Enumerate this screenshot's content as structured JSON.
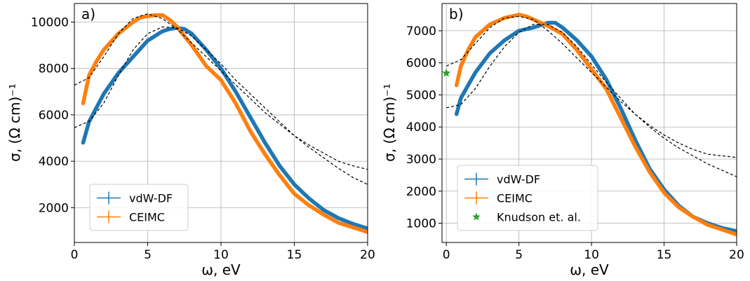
{
  "chart_data": [
    {
      "type": "line",
      "panel_label": "a)",
      "xlabel": "ω, eV",
      "ylabel": "σ, (Ω cm)⁻¹",
      "xlim": [
        0,
        20
      ],
      "ylim": [
        500,
        10800
      ],
      "xticks": [
        0,
        5,
        10,
        15,
        20
      ],
      "yticks": [
        2000,
        4000,
        6000,
        8000,
        10000
      ],
      "grid": true,
      "legend_position": "lower-left",
      "series": [
        {
          "name": "vdW-DF",
          "color": "#1f77b4",
          "x": [
            0.6,
            1,
            1.5,
            2,
            3,
            4,
            5,
            6,
            6.5,
            7,
            7.5,
            8,
            9,
            10,
            11,
            12,
            13,
            14,
            15,
            16,
            17,
            18,
            19,
            20
          ],
          "y": [
            4800,
            5700,
            6300,
            6900,
            7800,
            8500,
            9200,
            9600,
            9700,
            9750,
            9700,
            9500,
            8800,
            8000,
            7000,
            5900,
            4800,
            3800,
            3000,
            2400,
            1900,
            1550,
            1300,
            1100
          ]
        },
        {
          "name": "CEIMC",
          "color": "#ff7f0e",
          "x": [
            0.6,
            1,
            1.5,
            2,
            3,
            4,
            4.5,
            5,
            5.5,
            6,
            6.5,
            7,
            8,
            9,
            10,
            11,
            12,
            13,
            14,
            15,
            16,
            17,
            18,
            19,
            20
          ],
          "y": [
            6500,
            7700,
            8300,
            8800,
            9500,
            10000,
            10200,
            10250,
            10300,
            10300,
            10100,
            9800,
            9000,
            8100,
            7500,
            6500,
            5300,
            4300,
            3400,
            2600,
            2100,
            1700,
            1350,
            1150,
            950
          ]
        },
        {
          "name": "",
          "style": "dashed",
          "color": "#000000",
          "x": [
            0,
            1,
            2,
            3,
            4,
            5,
            6,
            7,
            8,
            9,
            10,
            11,
            12,
            13,
            14,
            15,
            16,
            17,
            18,
            19,
            20
          ],
          "y": [
            5450,
            5720,
            6500,
            7700,
            8800,
            9500,
            9790,
            9750,
            9400,
            8800,
            8200,
            7500,
            6900,
            6300,
            5700,
            5100,
            4600,
            4150,
            3700,
            3300,
            3000
          ]
        },
        {
          "name": "",
          "style": "dashed",
          "color": "#000000",
          "x": [
            0,
            1,
            2,
            3,
            4,
            5,
            6,
            7,
            8,
            9,
            10,
            11,
            12,
            13,
            14,
            15,
            16,
            17,
            18,
            19,
            20
          ],
          "y": [
            7280,
            7600,
            8500,
            9500,
            10150,
            10360,
            10150,
            9700,
            9100,
            8500,
            7900,
            7300,
            6700,
            6100,
            5600,
            5100,
            4700,
            4350,
            4000,
            3800,
            3650
          ]
        }
      ]
    },
    {
      "type": "line",
      "panel_label": "b)",
      "xlabel": "ω, eV",
      "ylabel": "σ, (Ω cm)⁻¹",
      "xlim": [
        -0.3,
        20
      ],
      "ylim": [
        400,
        7850
      ],
      "xticks": [
        0,
        5,
        10,
        15,
        20
      ],
      "yticks": [
        1000,
        2000,
        3000,
        4000,
        5000,
        6000,
        7000
      ],
      "grid": true,
      "legend_position": "lower-left",
      "series": [
        {
          "name": "vdW-DF",
          "color": "#1f77b4",
          "x": [
            0.7,
            1,
            1.5,
            2,
            3,
            4,
            5,
            6,
            7,
            7.5,
            8,
            9,
            10,
            11,
            12,
            13,
            14,
            15,
            16,
            17,
            18,
            19,
            20
          ],
          "y": [
            4400,
            4900,
            5300,
            5700,
            6300,
            6700,
            7000,
            7100,
            7250,
            7250,
            7100,
            6700,
            6200,
            5500,
            4600,
            3600,
            2700,
            2050,
            1550,
            1200,
            1000,
            850,
            750
          ]
        },
        {
          "name": "CEIMC",
          "color": "#ff7f0e",
          "x": [
            0.7,
            1,
            1.5,
            2,
            3,
            4,
            5,
            5.5,
            6,
            7,
            8,
            9,
            10,
            11,
            12,
            13,
            14,
            15,
            16,
            17,
            18,
            19,
            20
          ],
          "y": [
            5300,
            5900,
            6400,
            6800,
            7200,
            7400,
            7500,
            7450,
            7350,
            7150,
            6900,
            6400,
            5800,
            5200,
            4300,
            3400,
            2600,
            1950,
            1500,
            1200,
            950,
            800,
            650
          ]
        },
        {
          "name": "",
          "style": "dashed",
          "color": "#000000",
          "x": [
            0,
            1,
            2,
            3,
            4,
            5,
            6,
            7,
            8,
            9,
            10,
            11,
            12,
            13,
            14,
            15,
            16,
            17,
            18,
            19,
            20
          ],
          "y": [
            4600,
            4700,
            5200,
            5900,
            6500,
            6950,
            7200,
            7200,
            6950,
            6500,
            5950,
            5400,
            4900,
            4400,
            4000,
            3650,
            3350,
            3100,
            2850,
            2650,
            2450
          ]
        },
        {
          "name": "",
          "style": "dashed",
          "color": "#000000",
          "x": [
            0,
            1,
            2,
            3,
            4,
            5,
            6,
            7,
            8,
            9,
            10,
            11,
            12,
            13,
            14,
            15,
            16,
            17,
            18,
            19,
            20
          ],
          "y": [
            5900,
            6100,
            6600,
            7100,
            7400,
            7450,
            7350,
            7000,
            6600,
            6150,
            5700,
            5250,
            4800,
            4400,
            4050,
            3750,
            3500,
            3300,
            3150,
            3100,
            3050
          ]
        },
        {
          "name": "Knudson et. al.",
          "kind": "marker",
          "marker": "star",
          "color": "#2ca02c",
          "x": [
            0
          ],
          "y": [
            5680
          ]
        }
      ]
    }
  ]
}
